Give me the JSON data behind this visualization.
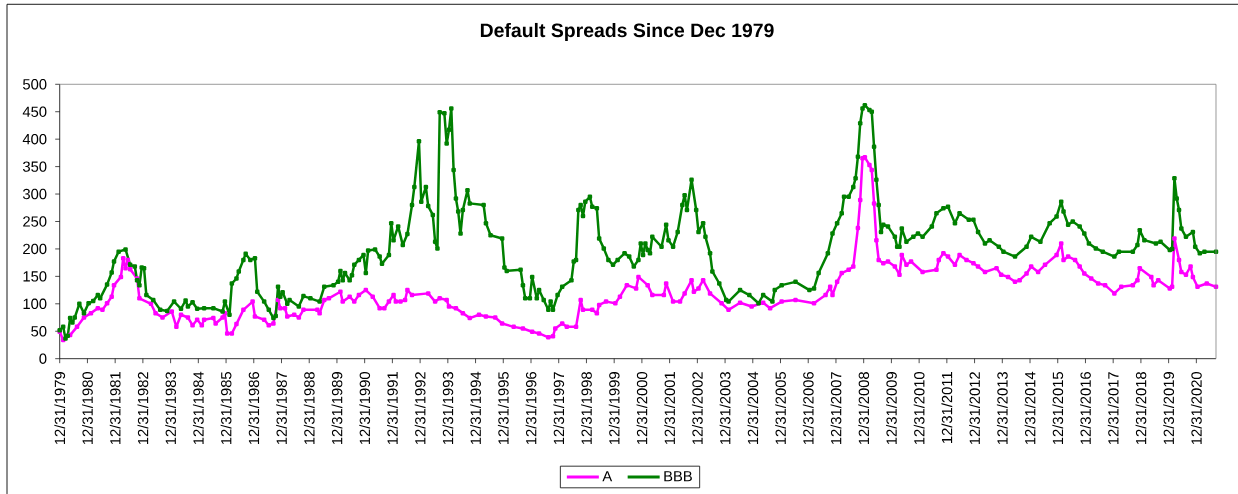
{
  "chart_data": {
    "type": "line",
    "title": "Default Spreads Since Dec 1979",
    "series": [
      {
        "name": "A",
        "color": "#ff00ff",
        "x": [
          "1979-12-31",
          "1980-02",
          "1980-05",
          "1980-08",
          "1980-11",
          "1981-02",
          "1981-05",
          "1981-07",
          "1981-09",
          "1981-11",
          "1981-12",
          "1982-03",
          "1982-04",
          "1982-05",
          "1982-06",
          "1982-07",
          "1982-10",
          "1982-11",
          "1983-04",
          "1983-06",
          "1983-09",
          "1984-01",
          "1984-03",
          "1984-05",
          "1984-08",
          "1984-10",
          "1984-12",
          "1985-02",
          "1985-03",
          "1985-07",
          "1985-08",
          "1985-11",
          "1985-12",
          "1986-01",
          "1986-03",
          "1986-05",
          "1986-08",
          "1986-12",
          "1987-01",
          "1987-05",
          "1987-07",
          "1987-09",
          "1987-11",
          "1987-12",
          "1988-02",
          "1988-03",
          "1988-06",
          "1988-08",
          "1988-10",
          "1989-04",
          "1989-05",
          "1989-07",
          "1989-09",
          "1990-02",
          "1990-03",
          "1990-06",
          "1990-08",
          "1990-10",
          "1991-01",
          "1991-04",
          "1991-07",
          "1991-09",
          "1991-11",
          "1992-01",
          "1992-02",
          "1992-04",
          "1992-06",
          "1992-07",
          "1992-09",
          "1993-04",
          "1993-07",
          "1993-09",
          "1993-12",
          "1994-01",
          "1994-04",
          "1994-07",
          "1994-10",
          "1995-02",
          "1995-05",
          "1995-09",
          "1995-12",
          "1996-05",
          "1996-09",
          "1997-01",
          "1997-04",
          "1997-08",
          "1997-10",
          "1997-11",
          "1998-02",
          "1998-04",
          "1998-08",
          "1998-10",
          "1998-11",
          "1999-03",
          "1999-05",
          "1999-06",
          "1999-09",
          "2000-01",
          "2000-03",
          "2000-06",
          "2000-10",
          "2000-11",
          "2001-03",
          "2001-05",
          "2001-10",
          "2001-11",
          "2002-02",
          "2002-05",
          "2002-07",
          "2002-10",
          "2002-11",
          "2003-01",
          "2003-03",
          "2003-06",
          "2003-11",
          "2004-02",
          "2004-07",
          "2004-12",
          "2005-05",
          "2005-08",
          "2006-01",
          "2006-07",
          "2007-03",
          "2007-08",
          "2007-10",
          "2007-11",
          "2008-01",
          "2008-03",
          "2008-06",
          "2008-08",
          "2008-10",
          "2008-11",
          "2008-12",
          "2009-01",
          "2009-03",
          "2009-04",
          "2009-05",
          "2009-06",
          "2009-07",
          "2009-09",
          "2009-11",
          "2010-02",
          "2010-04",
          "2010-05",
          "2010-07",
          "2010-09",
          "2011-02",
          "2011-08",
          "2011-09",
          "2011-11",
          "2012-01",
          "2012-04",
          "2012-06",
          "2012-09",
          "2012-12",
          "2013-02",
          "2013-05",
          "2013-10",
          "2013-12",
          "2014-03",
          "2014-06",
          "2014-08",
          "2014-11",
          "2015-01",
          "2015-04",
          "2015-07",
          "2015-12",
          "2016-02",
          "2016-03",
          "2016-05",
          "2016-08",
          "2016-10",
          "2016-12",
          "2017-03",
          "2017-06",
          "2017-09",
          "2018-01",
          "2018-04",
          "2018-09",
          "2018-11",
          "2018-12",
          "2019-05",
          "2019-06",
          "2019-08",
          "2020-01",
          "2020-02",
          "2020-03",
          "2020-05",
          "2020-06",
          "2020-08",
          "2020-10",
          "2020-11",
          "2021-01",
          "2021-05",
          "2021-09"
        ],
        "values": [
          49,
          34,
          43,
          58,
          75,
          83,
          92,
          89,
          101,
          113,
          134,
          149,
          183,
          165,
          180,
          163,
          146,
          110,
          100,
          83,
          75,
          86,
          58,
          80,
          75,
          61,
          71,
          61,
          71,
          74,
          64,
          75,
          83,
          46,
          46,
          63,
          89,
          104,
          77,
          71,
          61,
          64,
          107,
          92,
          92,
          77,
          80,
          75,
          89,
          89,
          83,
          107,
          110,
          122,
          104,
          113,
          104,
          116,
          125,
          113,
          92,
          92,
          104,
          116,
          104,
          104,
          107,
          125,
          116,
          119,
          104,
          110,
          107,
          95,
          92,
          83,
          74,
          80,
          77,
          75,
          64,
          58,
          55,
          49,
          46,
          39,
          41,
          55,
          64,
          58,
          58,
          107,
          89,
          89,
          83,
          98,
          104,
          101,
          113,
          134,
          128,
          149,
          134,
          116,
          116,
          137,
          104,
          104,
          119,
          143,
          122,
          128,
          143,
          119,
          101,
          89,
          102,
          95,
          102,
          92,
          104,
          107,
          101,
          116,
          131,
          116,
          140,
          156,
          162,
          168,
          238,
          289,
          365,
          367,
          353,
          344,
          283,
          216,
          180,
          174,
          177,
          168,
          153,
          189,
          171,
          177,
          158,
          162,
          180,
          192,
          186,
          171,
          189,
          180,
          174,
          168,
          158,
          165,
          153,
          149,
          140,
          143,
          155,
          168,
          158,
          171,
          189,
          210,
          180,
          186,
          180,
          168,
          155,
          146,
          137,
          134,
          119,
          131,
          134,
          143,
          165,
          149,
          134,
          143,
          128,
          131,
          219,
          180,
          158,
          153,
          168,
          149,
          131,
          137,
          131
        ]
      },
      {
        "name": "BBB",
        "color": "#008000",
        "x": [
          "1979-12-31",
          "1980-02",
          "1980-03",
          "1980-04",
          "1980-05",
          "1980-06",
          "1980-07",
          "1980-09",
          "1980-11",
          "1981-01",
          "1981-03",
          "1981-05",
          "1981-06",
          "1981-09",
          "1981-11",
          "1981-12",
          "1982-02",
          "1982-05",
          "1982-07",
          "1982-09",
          "1982-10",
          "1982-11",
          "1982-12",
          "1983-01",
          "1983-02",
          "1983-05",
          "1983-08",
          "1983-11",
          "1984-02",
          "1984-05",
          "1984-07",
          "1984-08",
          "1984-10",
          "1984-12",
          "1985-03",
          "1985-07",
          "1985-11",
          "1985-12",
          "1986-02",
          "1986-03",
          "1986-05",
          "1986-06",
          "1986-08",
          "1986-09",
          "1986-11",
          "1987-01",
          "1987-02",
          "1987-05",
          "1987-07",
          "1987-09",
          "1987-10",
          "1987-11",
          "1987-12",
          "1988-01",
          "1988-03",
          "1988-04",
          "1988-08",
          "1988-10",
          "1989-01",
          "1989-05",
          "1989-07",
          "1989-11",
          "1990-01",
          "1990-02",
          "1990-03",
          "1990-04",
          "1990-06",
          "1990-07",
          "1990-08",
          "1990-10",
          "1990-12",
          "1991-01",
          "1991-02",
          "1991-05",
          "1991-07",
          "1991-08",
          "1991-11",
          "1991-12",
          "1992-01",
          "1992-03",
          "1992-05",
          "1992-07",
          "1992-09",
          "1992-10",
          "1992-12",
          "1993-01",
          "1993-03",
          "1993-04",
          "1993-06",
          "1993-07",
          "1993-08",
          "1993-09",
          "1993-11",
          "1993-12",
          "1994-01",
          "1994-02",
          "1994-03",
          "1994-04",
          "1994-05",
          "1994-06",
          "1994-07",
          "1994-09",
          "1994-10",
          "1995-04",
          "1995-05",
          "1995-07",
          "1995-12",
          "1996-01",
          "1996-02",
          "1996-08",
          "1996-09",
          "1996-10",
          "1996-12",
          "1997-01",
          "1997-03",
          "1997-04",
          "1997-06",
          "1997-08",
          "1997-09",
          "1997-10",
          "1997-12",
          "1998-02",
          "1998-06",
          "1998-07",
          "1998-08",
          "1998-09",
          "1998-10",
          "1998-11",
          "1998-12",
          "1999-02",
          "1999-03",
          "1999-05",
          "1999-06",
          "1999-08",
          "1999-10",
          "1999-12",
          "2000-02",
          "2000-05",
          "2000-07",
          "2000-09",
          "2000-11",
          "2000-12",
          "2001-01",
          "2001-02",
          "2001-03",
          "2001-04",
          "2001-05",
          "2001-09",
          "2001-11",
          "2001-12",
          "2002-02",
          "2002-04",
          "2002-06",
          "2002-07",
          "2002-08",
          "2002-10",
          "2002-12",
          "2003-01",
          "2003-03",
          "2003-04",
          "2003-06",
          "2003-07",
          "2003-10",
          "2004-01",
          "2004-02",
          "2004-07",
          "2004-11",
          "2005-03",
          "2005-05",
          "2005-09",
          "2005-10",
          "2006-01",
          "2006-07",
          "2007-01",
          "2007-03",
          "2007-05",
          "2007-09",
          "2007-11",
          "2008-01",
          "2008-03",
          "2008-04",
          "2008-06",
          "2008-08",
          "2008-09",
          "2008-10",
          "2008-11",
          "2008-12",
          "2009-01",
          "2009-03",
          "2009-04",
          "2009-05",
          "2009-06",
          "2009-07",
          "2009-08",
          "2009-09",
          "2009-11",
          "2010-02",
          "2010-03",
          "2010-04",
          "2010-05",
          "2010-07",
          "2010-10",
          "2010-12",
          "2011-02",
          "2011-06",
          "2011-08",
          "2011-11",
          "2012-01",
          "2012-04",
          "2012-06",
          "2012-10",
          "2012-12",
          "2013-02",
          "2013-05",
          "2013-07",
          "2013-11",
          "2014-01",
          "2014-06",
          "2014-11",
          "2015-01",
          "2015-05",
          "2015-09",
          "2015-12",
          "2016-02",
          "2016-03",
          "2016-05",
          "2016-07",
          "2016-10",
          "2016-12",
          "2017-02",
          "2017-05",
          "2017-08",
          "2018-01",
          "2018-03",
          "2018-09",
          "2018-11",
          "2018-12",
          "2019-02",
          "2019-07",
          "2019-09",
          "2020-01",
          "2020-02",
          "2020-03",
          "2020-04",
          "2020-05",
          "2020-06",
          "2020-08",
          "2020-11",
          "2020-12",
          "2021-02",
          "2021-04",
          "2021-09"
        ],
        "values": [
          52,
          58,
          37,
          42,
          74,
          66,
          75,
          100,
          83,
          101,
          105,
          116,
          110,
          135,
          157,
          177,
          195,
          199,
          171,
          168,
          143,
          134,
          166,
          165,
          116,
          107,
          89,
          87,
          104,
          91,
          106,
          95,
          103,
          91,
          92,
          92,
          86,
          104,
          80,
          137,
          146,
          159,
          180,
          191,
          180,
          183,
          122,
          104,
          89,
          74,
          78,
          131,
          113,
          121,
          100,
          107,
          95,
          114,
          110,
          104,
          131,
          134,
          140,
          160,
          143,
          156,
          143,
          152,
          171,
          180,
          189,
          156,
          197,
          199,
          186,
          173,
          189,
          247,
          216,
          241,
          207,
          227,
          280,
          313,
          396,
          286,
          313,
          278,
          262,
          213,
          201,
          449,
          447,
          392,
          417,
          456,
          344,
          292,
          268,
          228,
          271,
          307,
          283,
          280,
          247,
          225,
          219,
          166,
          160,
          162,
          134,
          110,
          110,
          149,
          110,
          125,
          107,
          89,
          104,
          89,
          116,
          131,
          143,
          177,
          180,
          271,
          280,
          260,
          286,
          295,
          277,
          274,
          219,
          201,
          180,
          171,
          180,
          192,
          186,
          168,
          180,
          210,
          189,
          210,
          198,
          192,
          222,
          204,
          244,
          216,
          204,
          231,
          280,
          298,
          271,
          326,
          271,
          231,
          247,
          222,
          192,
          159,
          137,
          107,
          104,
          125,
          116,
          101,
          116,
          104,
          125,
          134,
          140,
          125,
          128,
          156,
          192,
          228,
          247,
          265,
          295,
          295,
          313,
          329,
          368,
          429,
          456,
          462,
          453,
          450,
          386,
          326,
          280,
          231,
          244,
          241,
          222,
          204,
          204,
          237,
          213,
          222,
          228,
          222,
          241,
          265,
          274,
          277,
          247,
          265,
          253,
          253,
          231,
          210,
          216,
          204,
          195,
          186,
          204,
          222,
          213,
          247,
          259,
          286,
          268,
          244,
          250,
          241,
          228,
          210,
          201,
          195,
          186,
          195,
          195,
          207,
          234,
          216,
          210,
          213,
          198,
          200,
          329,
          292,
          271,
          237,
          222,
          231,
          204,
          192,
          195,
          195
        ]
      }
    ],
    "xlim": [
      "1979-12-31",
      "2021-09"
    ],
    "xticks": [
      {
        "value": "1979-12-31",
        "label": "12/31/1979"
      },
      {
        "value": "1980-12-31",
        "label": "12/31/1980"
      },
      {
        "value": "1981-12-31",
        "label": "12/31/1981"
      },
      {
        "value": "1982-12-31",
        "label": "12/31/1982"
      },
      {
        "value": "1983-12-31",
        "label": "12/31/1983"
      },
      {
        "value": "1984-12-31",
        "label": "12/31/1984"
      },
      {
        "value": "1985-12-31",
        "label": "12/31/1985"
      },
      {
        "value": "1986-12-31",
        "label": "12/31/1986"
      },
      {
        "value": "1987-12-31",
        "label": "12/31/1987"
      },
      {
        "value": "1988-12-31",
        "label": "12/31/1988"
      },
      {
        "value": "1989-12-31",
        "label": "12/31/1989"
      },
      {
        "value": "1990-12-31",
        "label": "12/31/1990"
      },
      {
        "value": "1991-12-31",
        "label": "12/31/1991"
      },
      {
        "value": "1992-12-31",
        "label": "12/31/1992"
      },
      {
        "value": "1993-12-31",
        "label": "12/31/1993"
      },
      {
        "value": "1994-12-31",
        "label": "12/31/1994"
      },
      {
        "value": "1995-12-31",
        "label": "12/31/1995"
      },
      {
        "value": "1996-12-31",
        "label": "12/31/1996"
      },
      {
        "value": "1997-12-31",
        "label": "12/31/1997"
      },
      {
        "value": "1998-12-31",
        "label": "12/31/1998"
      },
      {
        "value": "1999-12-31",
        "label": "12/31/1999"
      },
      {
        "value": "2000-12-31",
        "label": "12/31/2000"
      },
      {
        "value": "2001-12-31",
        "label": "12/31/2001"
      },
      {
        "value": "2002-12-31",
        "label": "12/31/2002"
      },
      {
        "value": "2003-12-31",
        "label": "12/31/2003"
      },
      {
        "value": "2004-12-31",
        "label": "12/31/2004"
      },
      {
        "value": "2005-12-31",
        "label": "12/31/2005"
      },
      {
        "value": "2006-12-31",
        "label": "12/31/2006"
      },
      {
        "value": "2007-12-31",
        "label": "12/31/2007"
      },
      {
        "value": "2008-12-31",
        "label": "12/31/2008"
      },
      {
        "value": "2009-12-31",
        "label": "12/31/2009"
      },
      {
        "value": "2010-12-31",
        "label": "12/31/2010"
      },
      {
        "value": "2011-12-31",
        "label": "12/31/2011"
      },
      {
        "value": "2012-12-31",
        "label": "12/31/2012"
      },
      {
        "value": "2013-12-31",
        "label": "12/31/2013"
      },
      {
        "value": "2014-12-31",
        "label": "12/31/2014"
      },
      {
        "value": "2015-12-31",
        "label": "12/31/2015"
      },
      {
        "value": "2016-12-31",
        "label": "12/31/2016"
      },
      {
        "value": "2017-12-31",
        "label": "12/31/2017"
      },
      {
        "value": "2018-12-31",
        "label": "12/31/2018"
      },
      {
        "value": "2019-12-31",
        "label": "12/31/2019"
      },
      {
        "value": "2020-12-31",
        "label": "12/31/2020"
      }
    ],
    "ylim": [
      0,
      500
    ],
    "yticks": [
      0,
      50,
      100,
      150,
      200,
      250,
      300,
      350,
      400,
      450,
      500
    ],
    "legend": "bottom",
    "marker": "square",
    "line_style": "solid"
  }
}
